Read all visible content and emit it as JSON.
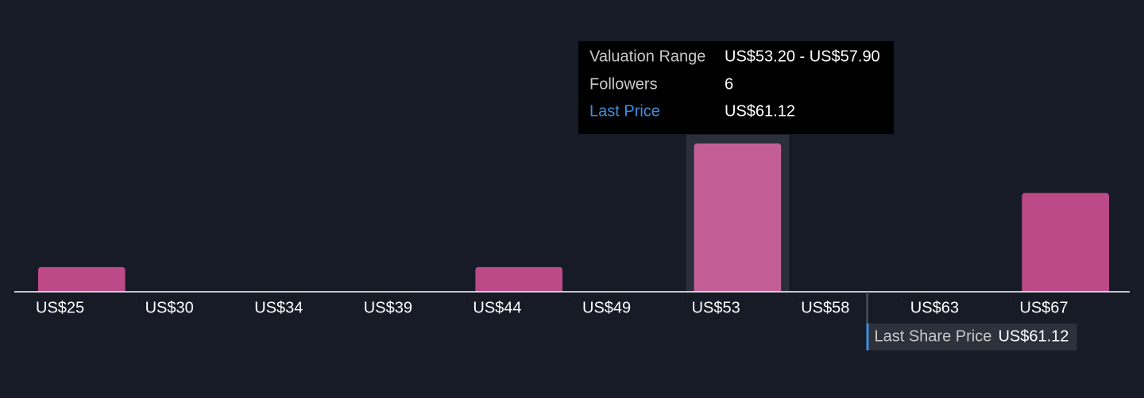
{
  "chart_data": {
    "type": "histogram",
    "bins": [
      25.0,
      29.7,
      34.4,
      39.1,
      43.8,
      48.5,
      53.2,
      57.9,
      62.6,
      67.3,
      72.0
    ],
    "values": [
      1,
      0,
      0,
      0,
      1,
      0,
      6,
      0,
      0,
      4
    ],
    "color": "#bd4a88",
    "highlight_color": "#c45e97",
    "xlim": [
      25.0,
      72.0
    ],
    "xticks": [
      {
        "value": 25.0,
        "label": "US$25"
      },
      {
        "value": 29.7,
        "label": "US$30"
      },
      {
        "value": 34.4,
        "label": "US$34"
      },
      {
        "value": 39.1,
        "label": "US$39"
      },
      {
        "value": 43.8,
        "label": "US$44"
      },
      {
        "value": 48.5,
        "label": "US$49"
      },
      {
        "value": 53.2,
        "label": "US$53"
      },
      {
        "value": 57.9,
        "label": "US$58"
      },
      {
        "value": 62.6,
        "label": "US$63"
      },
      {
        "value": 67.3,
        "label": "US$67"
      }
    ],
    "last_price": {
      "label": "Last Share Price",
      "value": 61.12,
      "value_label": "US$61.12"
    },
    "tooltip": {
      "range_label": "Valuation Range",
      "range": "US$53.20 - US$57.90",
      "followers_label": "Followers",
      "price_label": "Last Price"
    }
  }
}
